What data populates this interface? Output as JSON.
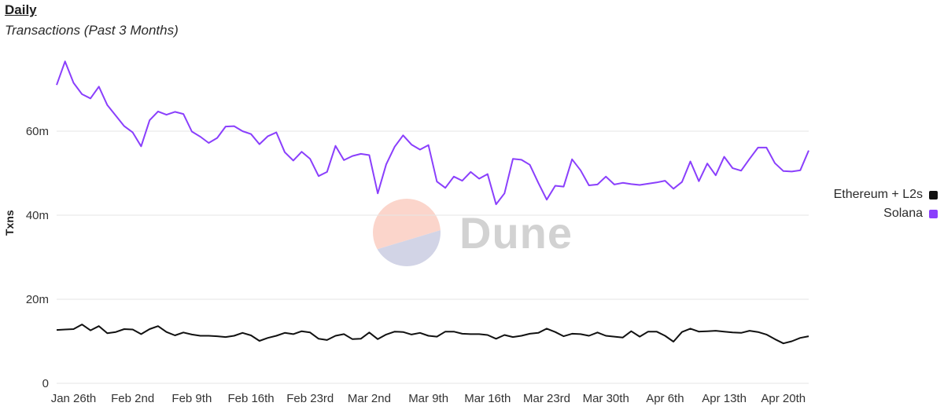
{
  "header": {
    "title": "Daily",
    "subtitle": "Transactions (Past 3 Months)"
  },
  "watermark": {
    "text": "Dune"
  },
  "colors": {
    "ethereum": "#111111",
    "solana": "#8a3ffc",
    "grid": "#e6e6e6",
    "tick_text": "#333333"
  },
  "chart_data": {
    "type": "line",
    "ylabel": "Txns",
    "ylim": [
      0,
      80000000
    ],
    "y_ticks": [
      {
        "value": 0,
        "label": "0"
      },
      {
        "value": 20000000,
        "label": "20m"
      },
      {
        "value": 40000000,
        "label": "40m"
      },
      {
        "value": 60000000,
        "label": "60m"
      }
    ],
    "x_ticks": [
      {
        "index": 2,
        "label": "Jan 26th"
      },
      {
        "index": 9,
        "label": "Feb 2nd"
      },
      {
        "index": 16,
        "label": "Feb 9th"
      },
      {
        "index": 23,
        "label": "Feb 16th"
      },
      {
        "index": 30,
        "label": "Feb 23rd"
      },
      {
        "index": 37,
        "label": "Mar 2nd"
      },
      {
        "index": 44,
        "label": "Mar 9th"
      },
      {
        "index": 51,
        "label": "Mar 16th"
      },
      {
        "index": 58,
        "label": "Mar 23rd"
      },
      {
        "index": 65,
        "label": "Mar 30th"
      },
      {
        "index": 72,
        "label": "Apr 6th"
      },
      {
        "index": 79,
        "label": "Apr 13th"
      },
      {
        "index": 86,
        "label": "Apr 20th"
      }
    ],
    "legend_position": "right",
    "series": [
      {
        "name": "Ethereum + L2s",
        "color": "#111111",
        "values": [
          12.7,
          12.8,
          12.9,
          14.0,
          12.6,
          13.6,
          11.9,
          12.2,
          12.9,
          12.8,
          11.7,
          12.9,
          13.6,
          12.2,
          11.4,
          12.1,
          11.6,
          11.3,
          11.3,
          11.2,
          11.0,
          11.3,
          12.0,
          11.4,
          10.1,
          10.8,
          11.3,
          12.0,
          11.7,
          12.4,
          12.1,
          10.6,
          10.3,
          11.3,
          11.7,
          10.5,
          10.6,
          12.1,
          10.5,
          11.6,
          12.3,
          12.2,
          11.6,
          12.0,
          11.3,
          11.1,
          12.3,
          12.3,
          11.8,
          11.7,
          11.7,
          11.5,
          10.6,
          11.5,
          11.0,
          11.3,
          11.8,
          12.0,
          13.0,
          12.2,
          11.2,
          11.8,
          11.7,
          11.3,
          12.1,
          11.3,
          11.1,
          10.9,
          12.4,
          11.1,
          12.3,
          12.3,
          11.3,
          9.9,
          12.2,
          13.0,
          12.3,
          12.4,
          12.5,
          12.3,
          12.1,
          12.0,
          12.5,
          12.2,
          11.6,
          10.5,
          9.5,
          10.0,
          10.8,
          11.2
        ]
      },
      {
        "name": "Solana",
        "color": "#8a3ffc",
        "values": [
          71.0,
          76.6,
          71.5,
          68.8,
          67.8,
          70.6,
          66.2,
          63.7,
          61.2,
          59.7,
          56.4,
          62.6,
          64.7,
          63.9,
          64.6,
          64.1,
          59.9,
          58.7,
          57.2,
          58.4,
          61.1,
          61.2,
          60.0,
          59.3,
          56.9,
          58.8,
          59.7,
          55.0,
          53.0,
          55.1,
          53.4,
          49.3,
          50.3,
          56.5,
          53.1,
          54.1,
          54.6,
          54.3,
          45.2,
          52.1,
          56.3,
          59.0,
          56.8,
          55.6,
          56.7,
          48.0,
          46.5,
          49.2,
          48.2,
          50.3,
          48.7,
          49.8,
          42.6,
          45.2,
          53.4,
          53.2,
          52.0,
          47.7,
          43.7,
          47.0,
          46.8,
          53.3,
          50.7,
          47.1,
          47.3,
          49.2,
          47.3,
          47.7,
          47.4,
          47.2,
          47.5,
          47.8,
          48.2,
          46.3,
          47.9,
          52.8,
          48.1,
          52.3,
          49.5,
          53.9,
          51.2,
          50.6,
          53.4,
          56.1,
          56.1,
          52.4,
          50.5,
          50.4,
          50.7,
          55.4
        ]
      }
    ]
  }
}
